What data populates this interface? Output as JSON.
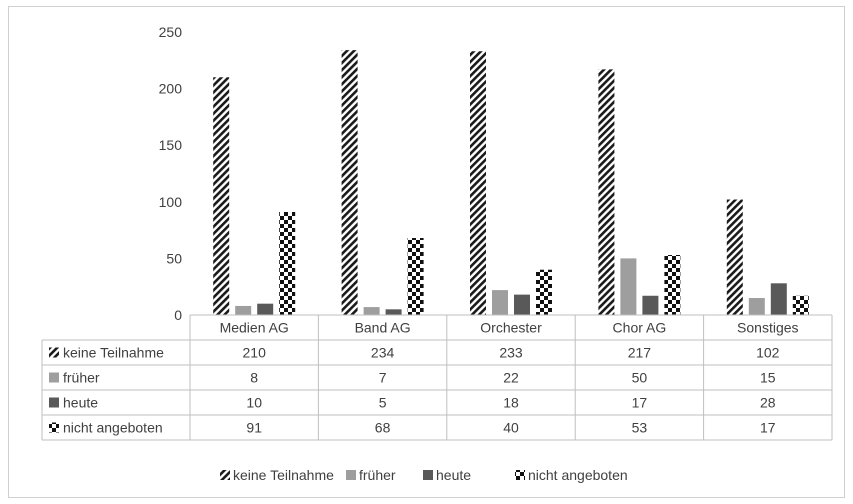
{
  "chart_data": {
    "type": "bar",
    "categories": [
      "Medien AG",
      "Band AG",
      "Orchester",
      "Chor AG",
      "Sonstiges"
    ],
    "series": [
      {
        "name": "keine Teilnahme",
        "values": [
          210,
          234,
          233,
          217,
          102
        ],
        "pattern": "diagonal-stripes"
      },
      {
        "name": "früher",
        "values": [
          8,
          7,
          22,
          50,
          15
        ],
        "color": "#9e9e9e",
        "pattern": "solid"
      },
      {
        "name": "heute",
        "values": [
          10,
          5,
          18,
          17,
          28
        ],
        "color": "#595959",
        "pattern": "solid"
      },
      {
        "name": "nicht angeboten",
        "values": [
          91,
          68,
          40,
          53,
          17
        ],
        "pattern": "checkerboard"
      }
    ],
    "y_ticks": [
      "0",
      "50",
      "100",
      "150",
      "200",
      "250"
    ],
    "ylim": [
      0,
      250
    ],
    "grid": false,
    "legend_position": "bottom",
    "data_table": true
  }
}
